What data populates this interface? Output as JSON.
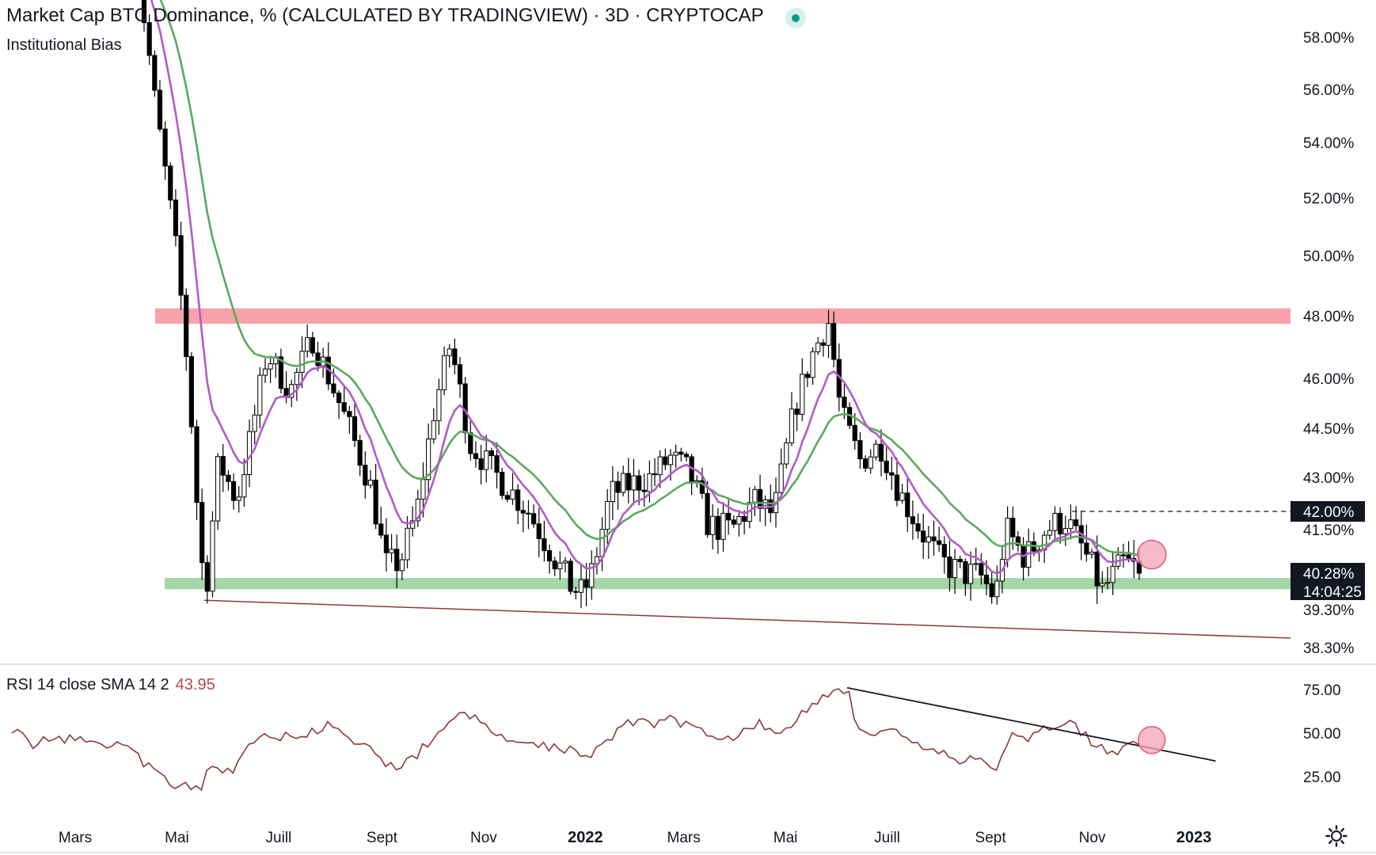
{
  "header": {
    "title": "Market Cap BTC Dominance, % (CALCULATED BY TRADINGVIEW) · 3D · CRYPTOCAP",
    "indicator": "Institutional Bias"
  },
  "rsi_pane": {
    "label": "RSI 14 close SMA 14 2",
    "value": "43.95"
  },
  "price_tags": {
    "level": "42.00%",
    "last": "40.28%",
    "countdown": "14:04:25"
  },
  "colors": {
    "resistance_zone": "#f7a1ab",
    "support_zone": "#a5d6a7",
    "ema_fast": "#b05cc7",
    "ema_slow": "#5aa95e",
    "rsi_line": "#8b3a3a",
    "trendline": "#8b3a3a",
    "highlight_circle": "#f5a3b6",
    "candle": "#000000"
  },
  "icons": {
    "settings": "gear-icon"
  },
  "chart_data": [
    {
      "type": "candlestick",
      "series": [
        {
          "name": "",
          "kind": "candles"
        },
        {
          "name": "",
          "kind": "ema-fast"
        },
        {
          "name": "",
          "kind": "ema-slow"
        }
      ],
      "x": [
        "2021-03-01",
        "2021-05-01",
        "2021-07-01",
        "2021-09-01",
        "2021-11-01",
        "2022-01-01",
        "2022-03-01",
        "2022-05-01",
        "2022-07-01",
        "2022-09-01",
        "2022-11-01",
        "2023-01-01"
      ],
      "x_tick_labels": [
        "Mars",
        "Mai",
        "Juill",
        "Sept",
        "Nov",
        "2022",
        "Mars",
        "Mai",
        "Juill",
        "Sept",
        "Nov",
        "2023"
      ],
      "y_tick_labels": [
        "58.00%",
        "56.00%",
        "54.00%",
        "52.00%",
        "50.00%",
        "48.00%",
        "46.00%",
        "44.50%",
        "43.00%",
        "41.50%",
        "39.30%",
        "38.30%"
      ],
      "price_path": [
        [
          "2021-04-05",
          62.0
        ],
        [
          "2021-04-18",
          55.5
        ],
        [
          "2021-05-01",
          50.0
        ],
        [
          "2021-05-08",
          46.0
        ],
        [
          "2021-05-14",
          41.5
        ],
        [
          "2021-05-18",
          39.6
        ],
        [
          "2021-05-26",
          43.5
        ],
        [
          "2021-06-06",
          42.3
        ],
        [
          "2021-06-14",
          44.2
        ],
        [
          "2021-06-24",
          46.8
        ],
        [
          "2021-07-08",
          45.6
        ],
        [
          "2021-07-21",
          47.3
        ],
        [
          "2021-08-02",
          45.8
        ],
        [
          "2021-08-14",
          44.3
        ],
        [
          "2021-08-26",
          42.6
        ],
        [
          "2021-09-03",
          40.5
        ],
        [
          "2021-09-12",
          40.6
        ],
        [
          "2021-09-22",
          42.0
        ],
        [
          "2021-10-02",
          45.0
        ],
        [
          "2021-10-12",
          47.1
        ],
        [
          "2021-10-24",
          44.0
        ],
        [
          "2021-11-10",
          43.0
        ],
        [
          "2021-11-28",
          42.0
        ],
        [
          "2021-12-10",
          41.0
        ],
        [
          "2021-12-22",
          40.0
        ],
        [
          "2021-12-30",
          39.7
        ],
        [
          "2022-01-05",
          40.3
        ],
        [
          "2022-01-16",
          42.5
        ],
        [
          "2022-01-28",
          42.8
        ],
        [
          "2022-02-09",
          43.0
        ],
        [
          "2022-02-21",
          43.6
        ],
        [
          "2022-03-04",
          43.2
        ],
        [
          "2022-03-16",
          41.6
        ],
        [
          "2022-03-30",
          41.5
        ],
        [
          "2022-04-12",
          42.3
        ],
        [
          "2022-04-24",
          41.9
        ],
        [
          "2022-05-06",
          45.0
        ],
        [
          "2022-05-18",
          46.9
        ],
        [
          "2022-05-27",
          47.8
        ],
        [
          "2022-06-03",
          45.0
        ],
        [
          "2022-06-15",
          43.5
        ],
        [
          "2022-06-27",
          44.0
        ],
        [
          "2022-07-09",
          42.5
        ],
        [
          "2022-07-21",
          41.5
        ],
        [
          "2022-08-02",
          40.6
        ],
        [
          "2022-08-14",
          40.3
        ],
        [
          "2022-08-26",
          40.2
        ],
        [
          "2022-09-04",
          39.6
        ],
        [
          "2022-09-10",
          41.5
        ],
        [
          "2022-09-22",
          40.7
        ],
        [
          "2022-10-04",
          41.5
        ],
        [
          "2022-10-16",
          41.8
        ],
        [
          "2022-10-28",
          40.8
        ],
        [
          "2022-11-07",
          39.8
        ],
        [
          "2022-11-20",
          40.6
        ],
        [
          "2022-12-01",
          40.28
        ]
      ],
      "annotations": [
        {
          "kind": "resistance-zone",
          "from": 47.75,
          "to": 48.25
        },
        {
          "kind": "support-zone",
          "from": 39.85,
          "to": 40.15
        },
        {
          "kind": "trendline",
          "points": [
            [
              "2021-05-18",
              39.55
            ],
            [
              "2022-12-31",
              38.55
            ]
          ]
        },
        {
          "kind": "dashed-level",
          "value": 42.0,
          "from": "2022-10-20"
        },
        {
          "kind": "highlight-circle",
          "x": "2022-12-01",
          "y": 40.8
        }
      ]
    },
    {
      "type": "line",
      "series": [
        {
          "name": "",
          "kind": "rsi"
        }
      ],
      "y_tick_labels": [
        "75.00",
        "50.00",
        "25.00"
      ],
      "ylim": [
        12,
        82
      ],
      "rsi_path": [
        [
          "2021-01-22",
          53
        ],
        [
          "2021-02-05",
          42
        ],
        [
          "2021-02-15",
          48
        ],
        [
          "2021-03-01",
          46
        ],
        [
          "2021-03-12",
          48
        ],
        [
          "2021-03-22",
          43
        ],
        [
          "2021-04-01",
          44
        ],
        [
          "2021-04-13",
          31
        ],
        [
          "2021-04-25",
          23
        ],
        [
          "2021-05-08",
          18
        ],
        [
          "2021-05-15",
          17
        ],
        [
          "2021-05-20",
          29
        ],
        [
          "2021-06-05",
          29
        ],
        [
          "2021-06-14",
          45
        ],
        [
          "2021-06-27",
          50
        ],
        [
          "2021-07-10",
          46
        ],
        [
          "2021-07-24",
          52
        ],
        [
          "2021-08-01",
          54
        ],
        [
          "2021-08-12",
          46
        ],
        [
          "2021-08-25",
          40
        ],
        [
          "2021-09-08",
          30
        ],
        [
          "2021-09-20",
          36
        ],
        [
          "2021-10-05",
          50
        ],
        [
          "2021-10-18",
          64
        ],
        [
          "2021-11-02",
          53
        ],
        [
          "2021-11-18",
          44
        ],
        [
          "2021-12-04",
          43
        ],
        [
          "2021-12-18",
          42
        ],
        [
          "2022-01-02",
          37
        ],
        [
          "2022-01-14",
          45
        ],
        [
          "2022-01-26",
          58
        ],
        [
          "2022-02-08",
          55
        ],
        [
          "2022-02-22",
          58
        ],
        [
          "2022-03-05",
          54
        ],
        [
          "2022-03-19",
          49
        ],
        [
          "2022-04-01",
          48
        ],
        [
          "2022-04-15",
          57
        ],
        [
          "2022-04-28",
          47
        ],
        [
          "2022-05-10",
          61
        ],
        [
          "2022-05-25",
          72
        ],
        [
          "2022-06-07",
          76
        ],
        [
          "2022-06-12",
          57
        ],
        [
          "2022-06-24",
          48
        ],
        [
          "2022-07-06",
          50
        ],
        [
          "2022-07-19",
          42
        ],
        [
          "2022-08-02",
          39
        ],
        [
          "2022-08-14",
          33
        ],
        [
          "2022-08-25",
          35
        ],
        [
          "2022-09-04",
          30
        ],
        [
          "2022-09-12",
          48
        ],
        [
          "2022-09-25",
          47
        ],
        [
          "2022-10-08",
          54
        ],
        [
          "2022-10-20",
          56
        ],
        [
          "2022-11-02",
          44
        ],
        [
          "2022-11-14",
          38
        ],
        [
          "2022-11-24",
          47
        ],
        [
          "2022-12-01",
          44
        ]
      ],
      "annotations": [
        {
          "kind": "trendline",
          "points": [
            [
              "2022-06-07",
              76
            ],
            [
              "2023-01-14",
              34
            ]
          ]
        },
        {
          "kind": "highlight-circle",
          "x": "2022-12-01",
          "y": 46
        }
      ]
    }
  ]
}
